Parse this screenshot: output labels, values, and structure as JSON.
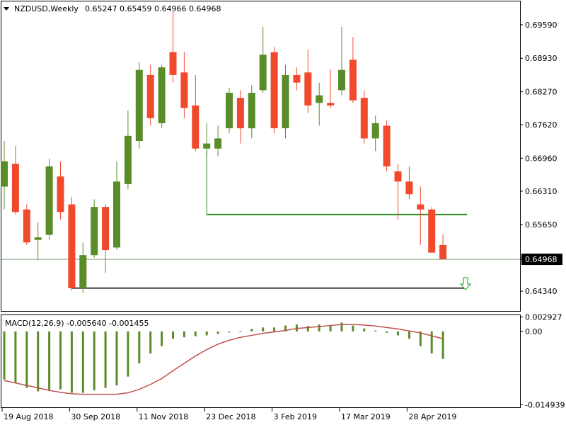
{
  "header": {
    "symbol": "NZDUSD,Weekly",
    "ohlc": "0.65247 0.65459 0.64966 0.64968"
  },
  "macd_panel": {
    "label": "MACD(12,26,9) -0.005640 -0.001455"
  },
  "colors": {
    "bull": "#5b8c2a",
    "bear": "#f0492b",
    "wick": "#5b8c2a",
    "signal": "#c0504d",
    "support_green": "#2e8b22",
    "support_grey": "#444444",
    "current_line": "#7fa07f",
    "arrow": "#3fae3f"
  },
  "chart_data": [
    {
      "type": "candlestick",
      "title": "NZDUSD,Weekly",
      "ylim": [
        0.6395,
        0.7005
      ],
      "price_ticks": [
        "0.69590",
        "0.68930",
        "0.68270",
        "0.67620",
        "0.66960",
        "0.66310",
        "0.65650",
        "0.64968",
        "0.64340"
      ],
      "current_price": "0.64968",
      "date_labels": [
        "19 Aug 2018",
        "30 Sep 2018",
        "11 Nov 2018",
        "23 Dec 2018",
        "3 Feb 2019",
        "17 Mar 2019",
        "28 Apr 2019"
      ],
      "candles": [
        {
          "o": 0.664,
          "h": 0.673,
          "l": 0.6595,
          "c": 0.669
        },
        {
          "o": 0.6685,
          "h": 0.672,
          "l": 0.6585,
          "c": 0.659
        },
        {
          "o": 0.6595,
          "h": 0.6605,
          "l": 0.6525,
          "c": 0.653
        },
        {
          "o": 0.6535,
          "h": 0.657,
          "l": 0.6495,
          "c": 0.654
        },
        {
          "o": 0.6545,
          "h": 0.6695,
          "l": 0.6535,
          "c": 0.668
        },
        {
          "o": 0.666,
          "h": 0.669,
          "l": 0.6575,
          "c": 0.659
        },
        {
          "o": 0.6605,
          "h": 0.662,
          "l": 0.6435,
          "c": 0.644
        },
        {
          "o": 0.644,
          "h": 0.653,
          "l": 0.643,
          "c": 0.6505
        },
        {
          "o": 0.6505,
          "h": 0.6615,
          "l": 0.65,
          "c": 0.66
        },
        {
          "o": 0.66,
          "h": 0.6605,
          "l": 0.647,
          "c": 0.6515
        },
        {
          "o": 0.652,
          "h": 0.669,
          "l": 0.6515,
          "c": 0.665
        },
        {
          "o": 0.6645,
          "h": 0.679,
          "l": 0.6635,
          "c": 0.674
        },
        {
          "o": 0.673,
          "h": 0.6885,
          "l": 0.6715,
          "c": 0.687
        },
        {
          "o": 0.686,
          "h": 0.688,
          "l": 0.676,
          "c": 0.6775
        },
        {
          "o": 0.6765,
          "h": 0.688,
          "l": 0.6755,
          "c": 0.6875
        },
        {
          "o": 0.6905,
          "h": 0.6985,
          "l": 0.6845,
          "c": 0.686
        },
        {
          "o": 0.6865,
          "h": 0.6905,
          "l": 0.6775,
          "c": 0.6795
        },
        {
          "o": 0.68,
          "h": 0.686,
          "l": 0.671,
          "c": 0.6715
        },
        {
          "o": 0.6715,
          "h": 0.6765,
          "l": 0.67,
          "c": 0.6725
        },
        {
          "o": 0.6715,
          "h": 0.676,
          "l": 0.67,
          "c": 0.6735
        },
        {
          "o": 0.6755,
          "h": 0.6835,
          "l": 0.6745,
          "c": 0.6825
        },
        {
          "o": 0.6815,
          "h": 0.683,
          "l": 0.6725,
          "c": 0.6755
        },
        {
          "o": 0.6755,
          "h": 0.684,
          "l": 0.6735,
          "c": 0.6825
        },
        {
          "o": 0.683,
          "h": 0.6955,
          "l": 0.6825,
          "c": 0.69
        },
        {
          "o": 0.6905,
          "h": 0.6915,
          "l": 0.6745,
          "c": 0.6755
        },
        {
          "o": 0.6755,
          "h": 0.688,
          "l": 0.6735,
          "c": 0.686
        },
        {
          "o": 0.686,
          "h": 0.6875,
          "l": 0.683,
          "c": 0.6845
        },
        {
          "o": 0.6865,
          "h": 0.691,
          "l": 0.6785,
          "c": 0.68
        },
        {
          "o": 0.6805,
          "h": 0.6845,
          "l": 0.676,
          "c": 0.682
        },
        {
          "o": 0.6805,
          "h": 0.687,
          "l": 0.6795,
          "c": 0.68
        },
        {
          "o": 0.683,
          "h": 0.6955,
          "l": 0.682,
          "c": 0.687
        },
        {
          "o": 0.689,
          "h": 0.6935,
          "l": 0.6805,
          "c": 0.681
        },
        {
          "o": 0.6815,
          "h": 0.683,
          "l": 0.6725,
          "c": 0.6735
        },
        {
          "o": 0.6735,
          "h": 0.678,
          "l": 0.671,
          "c": 0.6765
        },
        {
          "o": 0.676,
          "h": 0.677,
          "l": 0.667,
          "c": 0.668
        },
        {
          "o": 0.667,
          "h": 0.6685,
          "l": 0.6575,
          "c": 0.665
        },
        {
          "o": 0.665,
          "h": 0.668,
          "l": 0.6615,
          "c": 0.6625
        },
        {
          "o": 0.6605,
          "h": 0.664,
          "l": 0.6525,
          "c": 0.6595
        },
        {
          "o": 0.6595,
          "h": 0.66,
          "l": 0.651,
          "c": 0.651
        },
        {
          "o": 0.6525,
          "h": 0.6546,
          "l": 0.6497,
          "c": 0.6497
        }
      ],
      "indicator": {
        "name": "MACD(12,26,9)",
        "ylim": [
          -0.01545,
          0.0033
        ],
        "ticks": [
          "0.002927",
          "0.00",
          "-0.014939"
        ],
        "histogram": [
          -0.0098,
          -0.0105,
          -0.0115,
          -0.0122,
          -0.012,
          -0.0118,
          -0.0125,
          -0.0125,
          -0.012,
          -0.0115,
          -0.011,
          -0.0092,
          -0.0065,
          -0.0045,
          -0.003,
          -0.0015,
          -0.0012,
          -0.001,
          -0.0008,
          -0.0005,
          -0.0002,
          0.0,
          0.0005,
          0.0008,
          0.0008,
          0.0012,
          0.0014,
          0.0011,
          0.0014,
          0.0011,
          0.0018,
          0.0012,
          0.0006,
          0.0002,
          -0.0003,
          -0.0008,
          -0.0015,
          -0.003,
          -0.0045,
          -0.0056
        ],
        "signal": [
          -0.01,
          -0.0105,
          -0.011,
          -0.0115,
          -0.012,
          -0.0124,
          -0.0127,
          -0.0128,
          -0.0128,
          -0.0128,
          -0.0128,
          -0.0125,
          -0.0118,
          -0.0108,
          -0.0096,
          -0.008,
          -0.0065,
          -0.005,
          -0.0037,
          -0.0026,
          -0.0018,
          -0.0012,
          -0.0008,
          -0.0004,
          -0.0001,
          0.0002,
          0.0006,
          0.0008,
          0.001,
          0.0012,
          0.0014,
          0.0014,
          0.0013,
          0.0011,
          0.0008,
          0.0005,
          0.0001,
          -0.0003,
          -0.0009,
          -0.0015
        ]
      },
      "levels": [
        {
          "name": "resistance",
          "value": 0.6585,
          "from_index": 18,
          "to_index": 39
        },
        {
          "name": "support",
          "value": 0.644,
          "from_index": 6,
          "to_index": 39
        }
      ]
    }
  ]
}
